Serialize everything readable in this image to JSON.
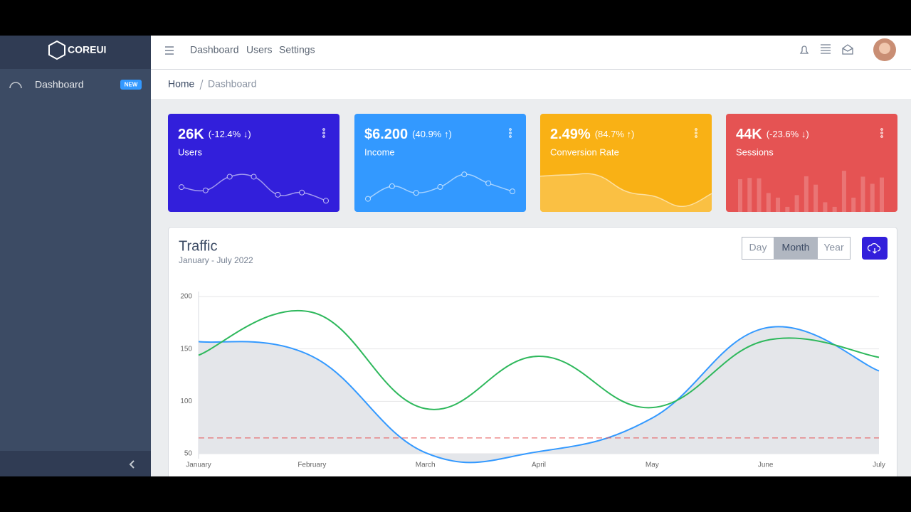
{
  "logo": "COREUI",
  "sidebar": {
    "items": [
      {
        "label": "Dashboard",
        "badge": "NEW"
      }
    ]
  },
  "header": {
    "nav": [
      "Dashboard",
      "Users",
      "Settings"
    ]
  },
  "breadcrumb": [
    "Home",
    "Dashboard"
  ],
  "cards": [
    {
      "value": "26K",
      "change": "(-12.4% ↓)",
      "label": "Users",
      "color": "#321fdb",
      "chart": {
        "type": "line",
        "values": [
          65,
          59,
          84,
          84,
          51,
          55,
          40
        ],
        "ylim": [
          30,
          95
        ]
      }
    },
    {
      "value": "$6.200",
      "change": "(40.9% ↑)",
      "label": "Income",
      "color": "#3399ff",
      "chart": {
        "type": "line",
        "values": [
          1,
          18,
          9,
          17,
          34,
          22,
          11
        ],
        "ylim": [
          -9,
          39
        ]
      }
    },
    {
      "value": "2.49%",
      "change": "(84.7% ↑)",
      "label": "Conversion Rate",
      "color": "#f9b115",
      "chart": {
        "type": "area",
        "values": [
          78,
          81,
          80,
          45,
          34,
          12,
          40
        ],
        "ylim": [
          0,
          90
        ]
      }
    },
    {
      "value": "44K",
      "change": "(-23.6% ↓)",
      "label": "Sessions",
      "color": "#e55353",
      "chart": {
        "type": "bar",
        "values": [
          78,
          81,
          80,
          45,
          34,
          12,
          40,
          85,
          65,
          23,
          12,
          98,
          34,
          84,
          67,
          82
        ],
        "ylim": [
          0,
          100
        ]
      }
    }
  ],
  "chart_data": {
    "type": "line",
    "title": "Traffic",
    "subtitle": "January - July 2022",
    "buttons": [
      "Day",
      "Month",
      "Year"
    ],
    "active_button": 1,
    "categories": [
      "January",
      "February",
      "March",
      "April",
      "May",
      "June",
      "July"
    ],
    "series": [
      {
        "color": "#3399ff",
        "fill": "#e4e6ea",
        "values": [
          157,
          143,
          51,
          52,
          84,
          170,
          129
        ]
      },
      {
        "color": "#2eb85c",
        "values": [
          144,
          185,
          93,
          143,
          94,
          158,
          142
        ]
      },
      {
        "color": "#e55353",
        "dash": true,
        "values": [
          65,
          65,
          65,
          65,
          65,
          65,
          65
        ]
      }
    ],
    "ylim": [
      50,
      200
    ],
    "yticks": [
      50,
      100,
      150,
      200
    ],
    "grid": true
  }
}
